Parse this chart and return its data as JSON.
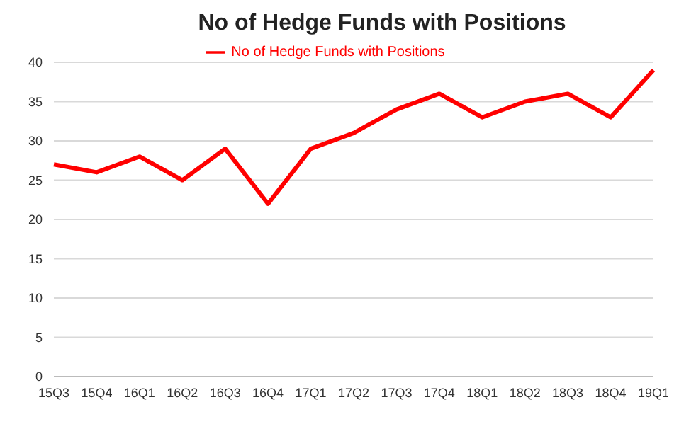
{
  "chart_data": {
    "type": "line",
    "title": "No of Hedge Funds with Positions",
    "categories": [
      "15Q3",
      "15Q4",
      "16Q1",
      "16Q2",
      "16Q3",
      "16Q4",
      "17Q1",
      "17Q2",
      "17Q3",
      "17Q4",
      "18Q1",
      "18Q2",
      "18Q3",
      "18Q4",
      "19Q1"
    ],
    "series": [
      {
        "name": "No of Hedge Funds with Positions",
        "color": "#ff0000",
        "values": [
          27,
          26,
          28,
          25,
          29,
          22,
          29,
          31,
          34,
          36,
          33,
          35,
          36,
          33,
          39
        ]
      }
    ],
    "ylim": [
      0,
      40
    ],
    "yticks": [
      0,
      5,
      10,
      15,
      20,
      25,
      30,
      35,
      40
    ],
    "grid": "y",
    "legend": "top",
    "marker": "none",
    "line_style": "solid"
  }
}
